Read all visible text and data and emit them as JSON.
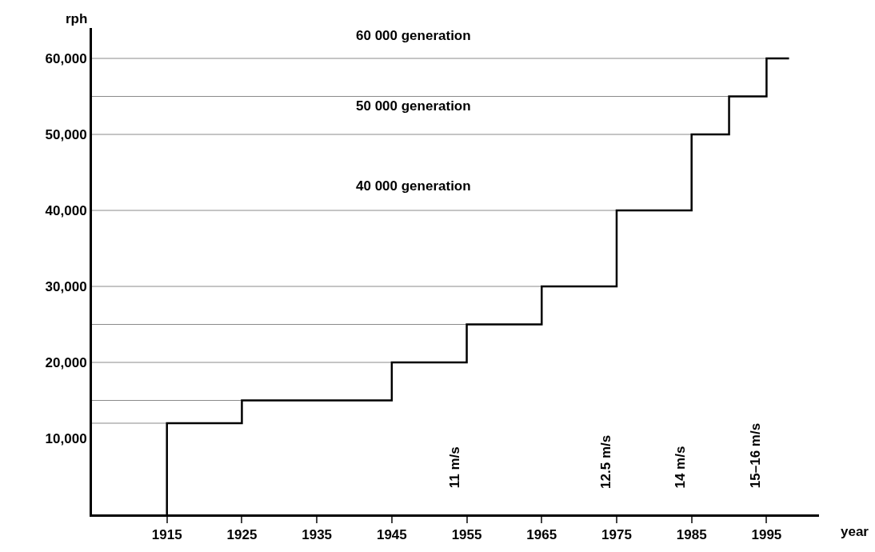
{
  "chart_data": {
    "type": "step",
    "xlabel": "year",
    "ylabel": "rph",
    "x": [
      1915,
      1915,
      1925,
      1945,
      1955,
      1965,
      1975,
      1985,
      1990,
      1995,
      1998
    ],
    "series": [
      {
        "color": "#000000",
        "values": [
          0,
          12000,
          15000,
          20000,
          25000,
          30000,
          40000,
          50000,
          55000,
          60000,
          60000
        ]
      }
    ],
    "xlim": [
      1905,
      2002
    ],
    "ylim": [
      0,
      64000
    ],
    "xticks": [
      1915,
      1925,
      1935,
      1945,
      1955,
      1965,
      1975,
      1985,
      1995
    ],
    "yticks": [
      {
        "value": 10000,
        "label": "10,000"
      },
      {
        "value": 20000,
        "label": "20,000"
      },
      {
        "value": 30000,
        "label": "30,000"
      },
      {
        "value": 40000,
        "label": "40,000"
      },
      {
        "value": 50000,
        "label": "50,000"
      },
      {
        "value": 60000,
        "label": "60,000"
      }
    ],
    "ref_lines": [
      {
        "axis": "y",
        "value": 12000,
        "color": "#8a8a8a"
      },
      {
        "axis": "y",
        "value": 15000,
        "color": "#8a8a8a"
      },
      {
        "axis": "y",
        "value": 20000,
        "color": "#8a8a8a"
      },
      {
        "axis": "y",
        "value": 25000,
        "color": "#8a8a8a"
      },
      {
        "axis": "y",
        "value": 30000,
        "color": "#8a8a8a"
      },
      {
        "axis": "y",
        "value": 40000,
        "color": "#8a8a8a"
      },
      {
        "axis": "y",
        "value": 50000,
        "color": "#8a8a8a"
      },
      {
        "axis": "y",
        "value": 55000,
        "color": "#8a8a8a"
      },
      {
        "axis": "y",
        "value": 60000,
        "color": "#8a8a8a"
      }
    ],
    "annotations": [
      "60 000 generation",
      "50 000 generation",
      "40 000 generation",
      "11 m/s",
      "12.5 m/s",
      "14 m/s",
      "15–16 m/s"
    ],
    "line_style": "solid",
    "marker": "none"
  }
}
